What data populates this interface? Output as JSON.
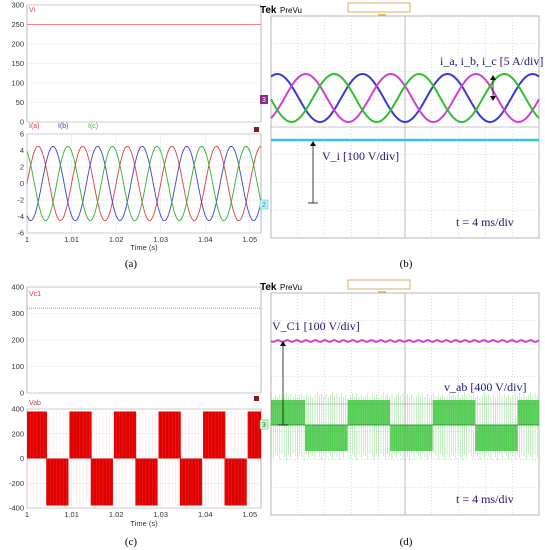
{
  "captions": {
    "a": "(a)",
    "b": "(b)",
    "c": "(c)",
    "d": "(d)"
  },
  "scope": {
    "brand": "Tek",
    "mode": "PreVu",
    "marker_T": "T",
    "marker_1": "1",
    "ch3": "3",
    "ch2": "2"
  },
  "chart_data": [
    {
      "id": "a-top",
      "type": "line",
      "title": "Vi",
      "x": [
        1.0,
        1.0525
      ],
      "xlim": [
        1.0,
        1.0525
      ],
      "ylim": [
        0,
        300
      ],
      "yticks": [
        0,
        50,
        100,
        150,
        200,
        250,
        300
      ],
      "series": [
        {
          "name": "Vi",
          "values": [
            250,
            250
          ],
          "color": "#e06060"
        }
      ]
    },
    {
      "id": "a-bottom",
      "type": "line",
      "xlabel": "Time (s)",
      "xlim": [
        1.0,
        1.0525
      ],
      "ylim": [
        -6,
        6
      ],
      "xticks": [
        1,
        1.01,
        1.02,
        1.03,
        1.04,
        1.05
      ],
      "xtick_labels": [
        "1",
        "1.01",
        "1.02",
        "1.03",
        "1.04",
        "1.05"
      ],
      "yticks": [
        -6,
        -4,
        -2,
        0,
        2,
        4,
        6
      ],
      "frequency_hz": 100,
      "amplitude": 4.5,
      "series": [
        {
          "name": "I(a)",
          "phase_deg": 0,
          "color": "#d94040"
        },
        {
          "name": "I(b)",
          "phase_deg": -120,
          "color": "#4040c8"
        },
        {
          "name": "I(c)",
          "phase_deg": 120,
          "color": "#30b030"
        }
      ]
    },
    {
      "id": "b",
      "type": "line",
      "annotations": [
        "i_a, i_b, i_c [5 A/div]",
        "V_i [100 V/div]",
        "t = 4 ms/div"
      ],
      "series": [
        {
          "name": "ia",
          "color": "#3a3ad0"
        },
        {
          "name": "ib",
          "color": "#d040d0"
        },
        {
          "name": "ic",
          "color": "#30c030"
        },
        {
          "name": "Vi",
          "color": "#30c8e0"
        }
      ]
    },
    {
      "id": "c-top",
      "type": "line",
      "title": "Vc1",
      "xlim": [
        1.0,
        1.0525
      ],
      "ylim": [
        0,
        400
      ],
      "yticks": [
        0,
        100,
        200,
        300,
        400
      ],
      "series": [
        {
          "name": "Vc1",
          "values": [
            320,
            320
          ],
          "color": "#e06060"
        }
      ]
    },
    {
      "id": "c-bottom",
      "type": "area",
      "title": "Vab",
      "xlabel": "Time (s)",
      "xlim": [
        1.0,
        1.0525
      ],
      "ylim": [
        -400,
        400
      ],
      "xticks": [
        1,
        1.01,
        1.02,
        1.03,
        1.04,
        1.05
      ],
      "xtick_labels": [
        "1",
        "1.01",
        "1.02",
        "1.03",
        "1.04",
        "1.05"
      ],
      "yticks": [
        -400,
        -200,
        0,
        200,
        400
      ],
      "ytick_labels": [
        "-400",
        "-200",
        "0",
        "200",
        "400"
      ],
      "series": [
        {
          "name": "Vab",
          "color": "#e00000"
        }
      ]
    },
    {
      "id": "d",
      "type": "line",
      "annotations": [
        "V_C1 [100 V/div]",
        "v_ab [400 V/div]",
        "t = 4 ms/div"
      ],
      "series": [
        {
          "name": "VC1",
          "color": "#d040d0"
        },
        {
          "name": "vab",
          "color": "#30c030"
        }
      ]
    }
  ]
}
